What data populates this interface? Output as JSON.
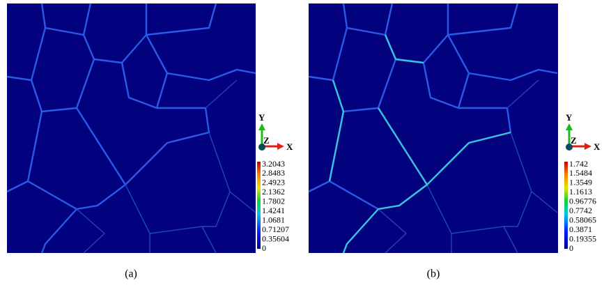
{
  "panels": [
    {
      "caption": "(a)",
      "axes": {
        "y": "Y",
        "z": "Z",
        "x": "X"
      },
      "colorbar_ticks": [
        "3.2043",
        "2.8483",
        "2.4923",
        "2.1362",
        "1.7802",
        "1.4241",
        "1.0681",
        "0.71207",
        "0.35604",
        "0"
      ]
    },
    {
      "caption": "(b)",
      "axes": {
        "y": "Y",
        "z": "Z",
        "x": "X"
      },
      "colorbar_ticks": [
        "1.742",
        "1.5484",
        "1.3549",
        "1.1613",
        "0.96776",
        "0.7742",
        "0.58065",
        "0.3871",
        "0.19355",
        "0"
      ]
    }
  ]
}
